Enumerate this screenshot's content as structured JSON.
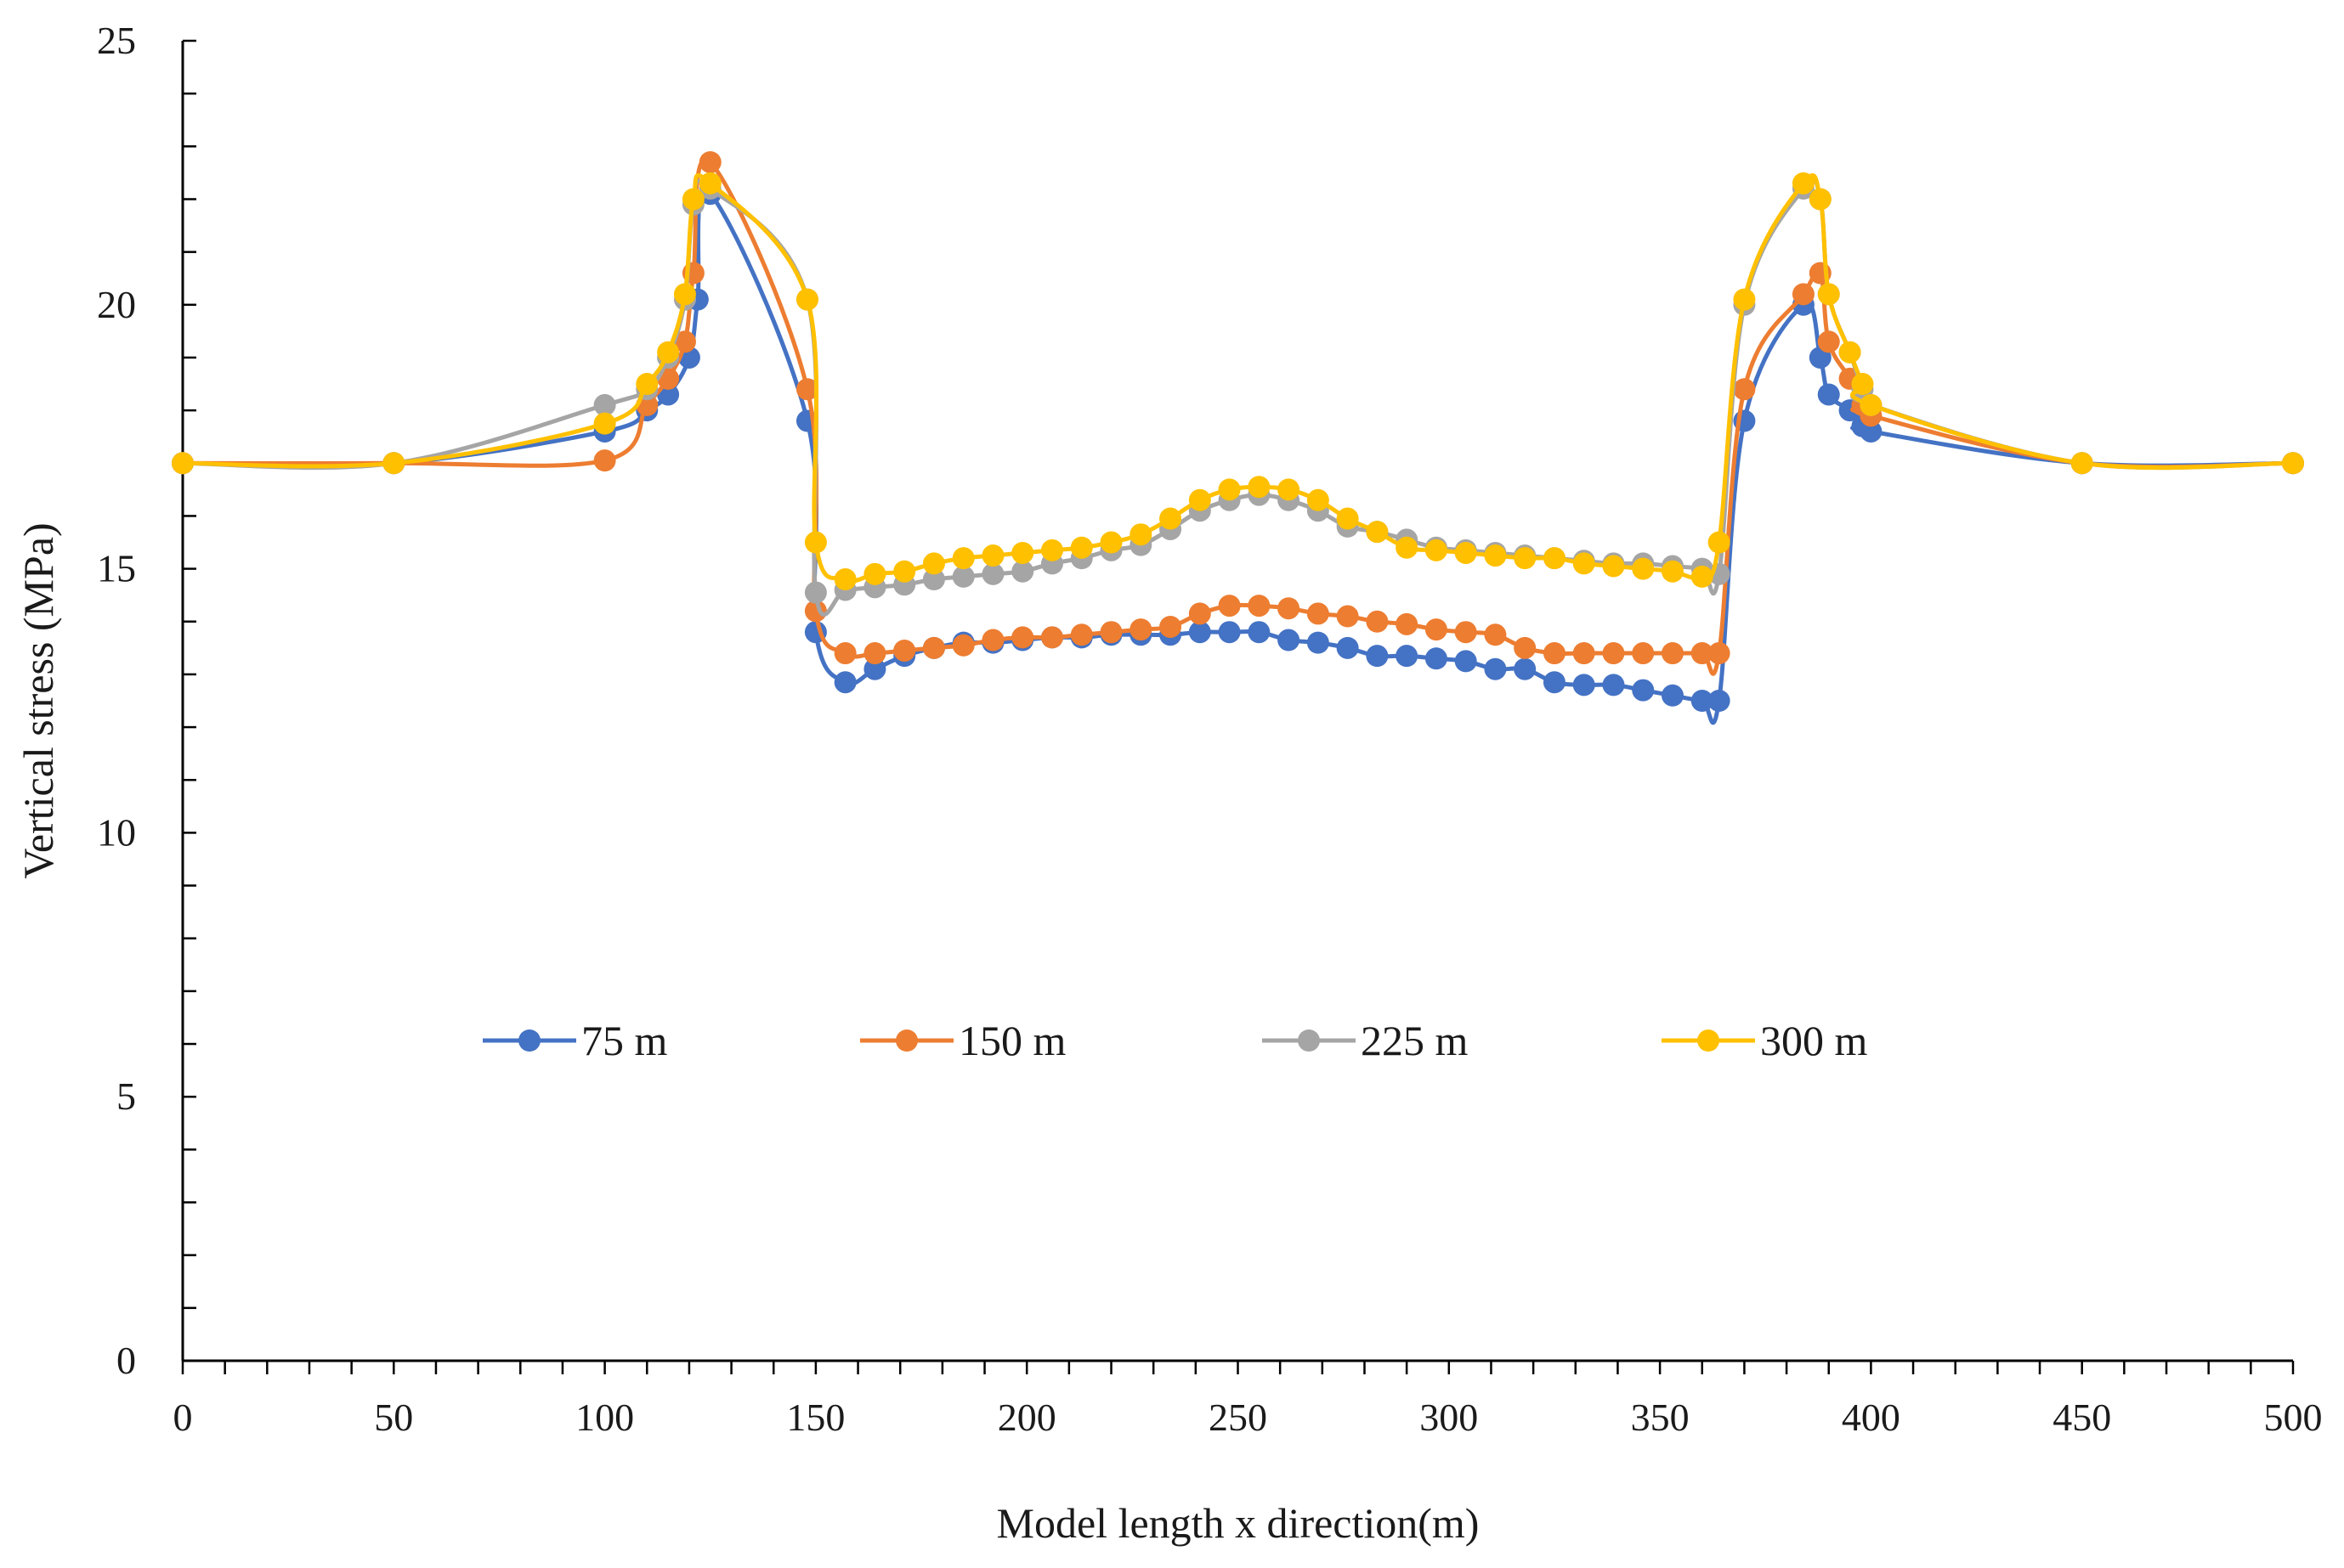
{
  "chart_data": {
    "type": "line",
    "title": "",
    "xlabel": "Model length x  direction(m)",
    "ylabel": "Vertical stress (MPa)",
    "xlim": [
      0,
      500
    ],
    "ylim": [
      0,
      25
    ],
    "x_ticks": [
      0,
      50,
      100,
      150,
      200,
      250,
      300,
      350,
      400,
      450,
      500
    ],
    "y_ticks": [
      0,
      5,
      10,
      15,
      20,
      25
    ],
    "x_minor_step": 10,
    "y_minor_step": 1,
    "grid": false,
    "legend_position": "middle",
    "markers": "circle",
    "series": [
      {
        "name": "75 m",
        "color": "#4472C4",
        "x": [
          0,
          50,
          100,
          110,
          115,
          120,
          122,
          125,
          148,
          150,
          157,
          164,
          171,
          178,
          185,
          192,
          199,
          206,
          213,
          220,
          227,
          234,
          241,
          248,
          255,
          262,
          269,
          276,
          283,
          290,
          297,
          304,
          311,
          318,
          325,
          332,
          339,
          346,
          353,
          360,
          364,
          370,
          384,
          388,
          390,
          395,
          398,
          400,
          450,
          500
        ],
        "y": [
          17.0,
          17.0,
          17.6,
          18.0,
          18.3,
          19.0,
          20.1,
          22.1,
          17.8,
          13.8,
          12.85,
          13.1,
          13.35,
          13.5,
          13.6,
          13.6,
          13.65,
          13.7,
          13.7,
          13.75,
          13.75,
          13.75,
          13.8,
          13.8,
          13.8,
          13.65,
          13.6,
          13.5,
          13.35,
          13.35,
          13.3,
          13.25,
          13.1,
          13.1,
          12.85,
          12.8,
          12.8,
          12.7,
          12.6,
          12.5,
          12.5,
          17.8,
          20.0,
          19.0,
          18.3,
          18.0,
          17.7,
          17.6,
          17.0,
          17.0
        ]
      },
      {
        "name": "150 m",
        "color": "#ED7D31",
        "x": [
          0,
          50,
          100,
          110,
          115,
          119,
          121,
          125,
          148,
          150,
          157,
          164,
          171,
          178,
          185,
          192,
          199,
          206,
          213,
          220,
          227,
          234,
          241,
          248,
          255,
          262,
          269,
          276,
          283,
          290,
          297,
          304,
          311,
          318,
          325,
          332,
          339,
          346,
          353,
          360,
          364,
          370,
          384,
          388,
          390,
          395,
          398,
          400,
          450,
          500
        ],
        "y": [
          17.0,
          17.0,
          17.05,
          18.1,
          18.6,
          19.3,
          20.6,
          22.7,
          18.4,
          14.2,
          13.4,
          13.4,
          13.45,
          13.5,
          13.55,
          13.65,
          13.7,
          13.7,
          13.75,
          13.8,
          13.85,
          13.9,
          14.15,
          14.3,
          14.3,
          14.25,
          14.15,
          14.1,
          14.0,
          13.95,
          13.85,
          13.8,
          13.75,
          13.5,
          13.4,
          13.4,
          13.4,
          13.4,
          13.4,
          13.4,
          13.4,
          18.4,
          20.2,
          20.6,
          19.3,
          18.6,
          18.1,
          17.9,
          17.0,
          17.0
        ]
      },
      {
        "name": "225 m",
        "color": "#A5A5A5",
        "x": [
          0,
          50,
          100,
          110,
          115,
          119,
          121,
          125,
          148,
          150,
          157,
          164,
          171,
          178,
          185,
          192,
          199,
          206,
          213,
          220,
          227,
          234,
          241,
          248,
          255,
          262,
          269,
          276,
          283,
          290,
          297,
          304,
          311,
          318,
          325,
          332,
          339,
          346,
          353,
          360,
          364,
          370,
          384,
          388,
          390,
          395,
          398,
          400,
          450,
          500
        ],
        "y": [
          17.0,
          17.0,
          18.1,
          18.4,
          19.0,
          20.1,
          21.9,
          22.2,
          20.1,
          14.55,
          14.6,
          14.65,
          14.7,
          14.8,
          14.85,
          14.9,
          14.95,
          15.1,
          15.2,
          15.35,
          15.45,
          15.75,
          16.1,
          16.3,
          16.4,
          16.3,
          16.1,
          15.8,
          15.7,
          15.55,
          15.4,
          15.35,
          15.3,
          15.25,
          15.2,
          15.15,
          15.1,
          15.1,
          15.05,
          15.0,
          14.9,
          20.0,
          22.2,
          22.0,
          20.2,
          19.1,
          18.4,
          18.1,
          17.0,
          17.0
        ]
      },
      {
        "name": "300 m",
        "color": "#FFC000",
        "x": [
          0,
          50,
          100,
          110,
          115,
          119,
          121,
          125,
          148,
          150,
          157,
          164,
          171,
          178,
          185,
          192,
          199,
          206,
          213,
          220,
          227,
          234,
          241,
          248,
          255,
          262,
          269,
          276,
          283,
          290,
          297,
          304,
          311,
          318,
          325,
          332,
          339,
          346,
          353,
          360,
          364,
          370,
          384,
          388,
          390,
          395,
          398,
          400,
          450,
          500
        ],
        "y": [
          17.0,
          17.0,
          17.75,
          18.5,
          19.1,
          20.2,
          22.0,
          22.3,
          20.1,
          15.5,
          14.8,
          14.9,
          14.95,
          15.1,
          15.2,
          15.25,
          15.3,
          15.35,
          15.4,
          15.5,
          15.65,
          15.95,
          16.3,
          16.5,
          16.55,
          16.5,
          16.3,
          15.95,
          15.7,
          15.4,
          15.35,
          15.3,
          15.25,
          15.2,
          15.2,
          15.1,
          15.05,
          15.0,
          14.95,
          14.85,
          15.5,
          20.1,
          22.3,
          22.0,
          20.2,
          19.1,
          18.5,
          18.1,
          17.0,
          17.0
        ]
      }
    ]
  }
}
